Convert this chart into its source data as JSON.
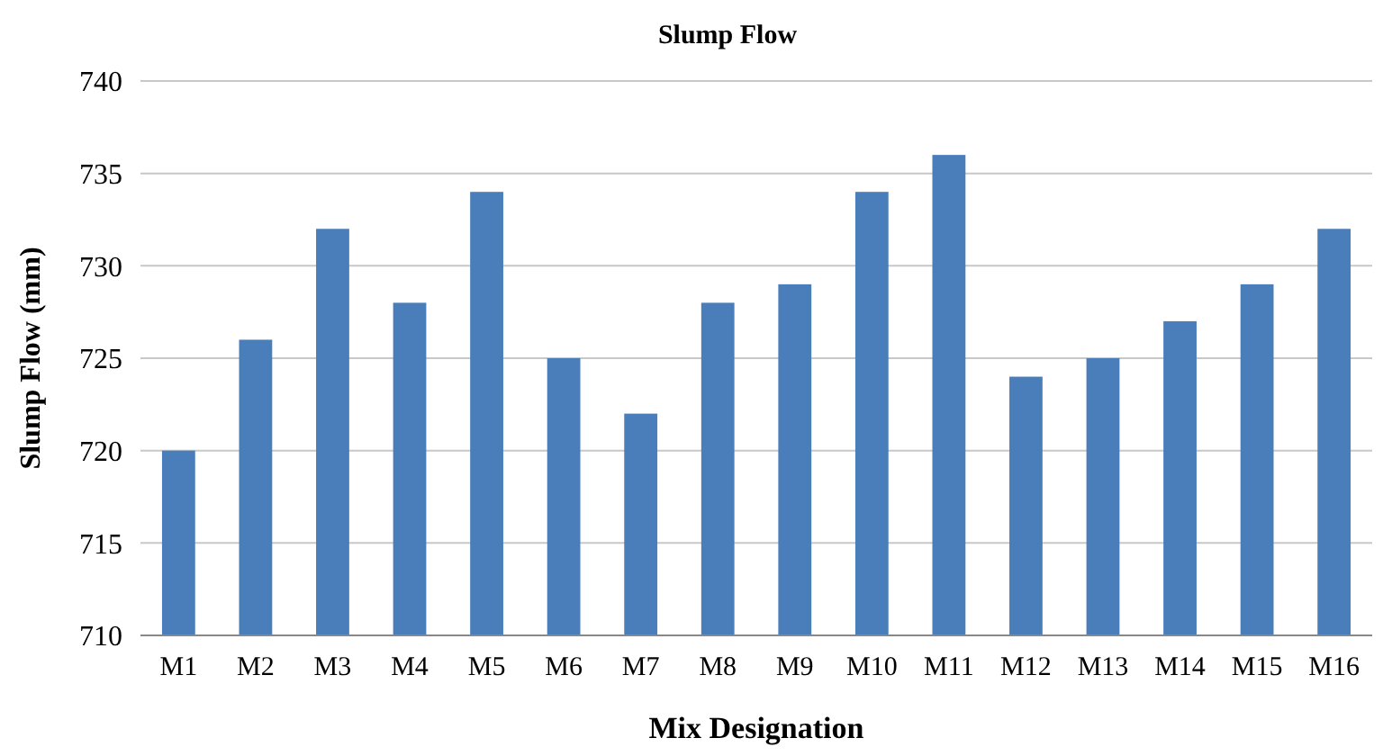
{
  "chart_data": {
    "type": "bar",
    "title": "Slump  Flow",
    "xlabel": "Mix Designation",
    "ylabel": "Slump Flow (mm)",
    "categories": [
      "M1",
      "M2",
      "M3",
      "M4",
      "M5",
      "M6",
      "M7",
      "M8",
      "M9",
      "M10",
      "M11",
      "M12",
      "M13",
      "M14",
      "M15",
      "M16"
    ],
    "values": [
      720,
      726,
      732,
      728,
      734,
      725,
      722,
      728,
      729,
      734,
      736,
      724,
      725,
      727,
      729,
      732
    ],
    "color": "#4a7ebb",
    "ylim": [
      710,
      740
    ],
    "yticks": [
      710,
      715,
      720,
      725,
      730,
      735,
      740
    ],
    "grid": "y"
  }
}
